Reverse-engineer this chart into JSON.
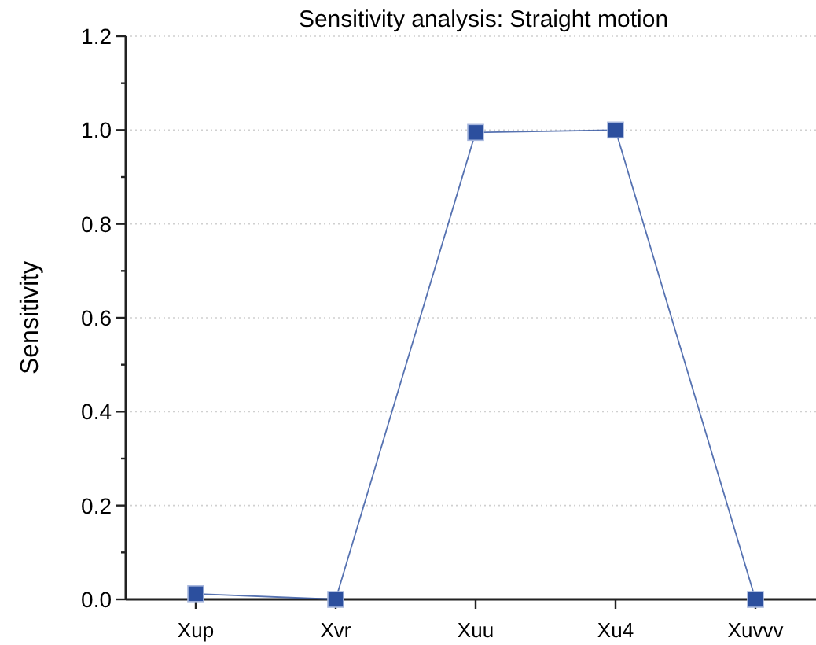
{
  "chart_data": {
    "type": "line",
    "title": "Sensitivity analysis: Straight motion",
    "ylabel": "Sensitivity",
    "categories": [
      "Xup",
      "Xvr",
      "Xuu",
      "Xu4",
      "Xuvvv"
    ],
    "series": [
      {
        "color": "#2c4f9e",
        "values": [
          0.012,
          0,
          0.995,
          1.0,
          0
        ]
      }
    ],
    "ylim": [
      0,
      1.2
    ],
    "yticks": [
      {
        "value": 0,
        "label": "0.0"
      },
      {
        "value": 0.1,
        "label": null
      },
      {
        "value": 0.2,
        "label": "0.2"
      },
      {
        "value": 0.3,
        "label": null
      },
      {
        "value": 0.4,
        "label": "0.4"
      },
      {
        "value": 0.5,
        "label": null
      },
      {
        "value": 0.6,
        "label": "0.6"
      },
      {
        "value": 0.7,
        "label": null
      },
      {
        "value": 0.8,
        "label": "0.8"
      },
      {
        "value": 0.9,
        "label": null
      },
      {
        "value": 1.0,
        "label": "1.0"
      },
      {
        "value": 1.1,
        "label": null
      },
      {
        "value": 1.2,
        "label": "1.2"
      }
    ],
    "grid": "y",
    "marker": "square",
    "line_style": "solid"
  }
}
